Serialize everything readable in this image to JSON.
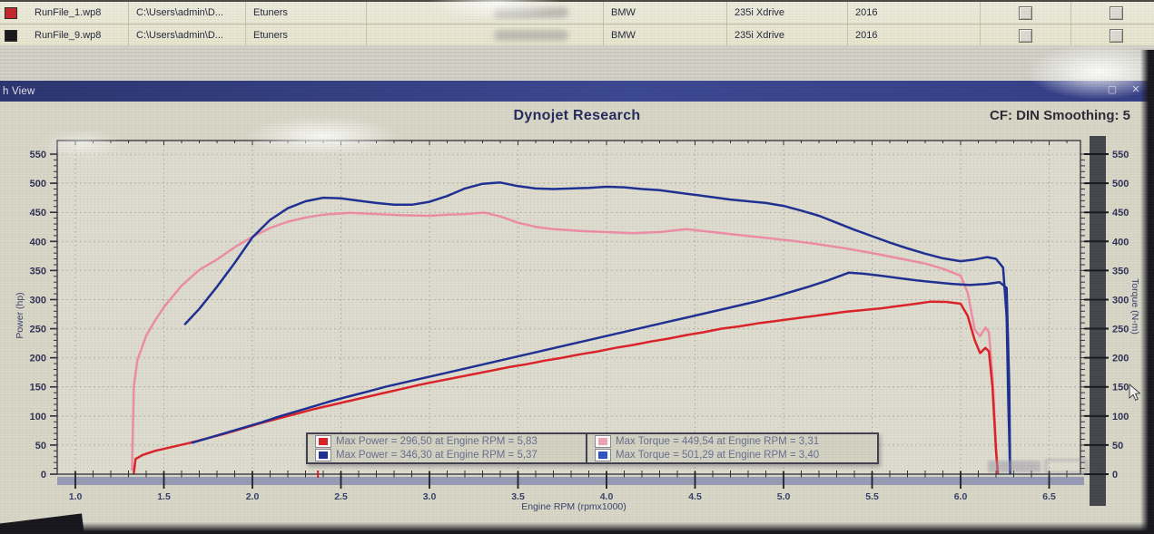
{
  "window": {
    "title": "h View",
    "maximize_glyph": "▢",
    "close_glyph": "✕"
  },
  "header": {
    "title": "Dynojet Research",
    "smoothing": "CF: DIN Smoothing: 5"
  },
  "table": {
    "rows": [
      {
        "icon_color": "#c4262b",
        "file": "RunFile_1.wp8",
        "path": "C:\\Users\\admin\\D...",
        "tuner": "Etuners",
        "make": "BMW",
        "model": "235i Xdrive",
        "year": "2016"
      },
      {
        "icon_color": "#17171a",
        "file": "RunFile_9.wp8",
        "path": "C:\\Users\\admin\\D...",
        "tuner": "Etuners",
        "make": "BMW",
        "model": "235i Xdrive",
        "year": "2016"
      }
    ]
  },
  "chart_data": {
    "type": "line",
    "title": "Dynojet Research",
    "xlabel": "Engine RPM (rpmx1000)",
    "ylabel_left": "Power (hp)",
    "ylabel_right": "Torque (N-m)",
    "xlim": [
      0.9,
      6.68
    ],
    "ylim": [
      0,
      573
    ],
    "x_ticks": [
      1.0,
      1.5,
      2.0,
      2.5,
      3.0,
      3.5,
      4.0,
      4.5,
      5.0,
      5.5,
      6.0,
      6.5
    ],
    "y_ticks": [
      0,
      50,
      100,
      150,
      200,
      250,
      300,
      350,
      400,
      450,
      500,
      550
    ],
    "x_minor_step": 0.1,
    "y_minor_step": 10,
    "grid": true,
    "legend_position": "bottom-center",
    "cursor_marker_rpm": 2.37,
    "colors": {
      "power_stock": "#dc2127",
      "power_tuned": "#1d2f93",
      "torque_stock": "#ee8da6",
      "torque_tuned": "#1d2f93"
    },
    "series": [
      {
        "name": "power_stock",
        "unit": "hp",
        "color": "#dc2127",
        "points": [
          [
            1.33,
            2
          ],
          [
            1.34,
            26
          ],
          [
            1.38,
            33
          ],
          [
            1.45,
            40
          ],
          [
            1.55,
            47
          ],
          [
            1.65,
            54
          ],
          [
            1.75,
            62
          ],
          [
            1.85,
            70
          ],
          [
            1.95,
            79
          ],
          [
            2.05,
            88
          ],
          [
            2.15,
            96
          ],
          [
            2.25,
            104
          ],
          [
            2.35,
            112
          ],
          [
            2.45,
            119
          ],
          [
            2.55,
            126
          ],
          [
            2.65,
            133
          ],
          [
            2.75,
            140
          ],
          [
            2.85,
            147
          ],
          [
            2.95,
            154
          ],
          [
            3.05,
            160
          ],
          [
            3.15,
            166
          ],
          [
            3.25,
            172
          ],
          [
            3.35,
            178
          ],
          [
            3.45,
            184
          ],
          [
            3.55,
            189
          ],
          [
            3.65,
            195
          ],
          [
            3.75,
            200
          ],
          [
            3.85,
            206
          ],
          [
            3.95,
            211
          ],
          [
            4.05,
            217
          ],
          [
            4.15,
            222
          ],
          [
            4.25,
            228
          ],
          [
            4.35,
            233
          ],
          [
            4.45,
            239
          ],
          [
            4.55,
            244
          ],
          [
            4.65,
            250
          ],
          [
            4.75,
            254
          ],
          [
            4.85,
            259
          ],
          [
            4.95,
            263
          ],
          [
            5.05,
            267
          ],
          [
            5.15,
            271
          ],
          [
            5.25,
            275
          ],
          [
            5.35,
            279
          ],
          [
            5.45,
            282
          ],
          [
            5.55,
            285
          ],
          [
            5.65,
            289
          ],
          [
            5.75,
            293
          ],
          [
            5.83,
            296.5
          ],
          [
            5.92,
            296
          ],
          [
            6.0,
            293
          ],
          [
            6.04,
            272
          ],
          [
            6.08,
            230
          ],
          [
            6.11,
            208
          ],
          [
            6.14,
            217
          ],
          [
            6.16,
            211
          ],
          [
            6.18,
            150
          ],
          [
            6.2,
            40
          ],
          [
            6.21,
            0
          ]
        ]
      },
      {
        "name": "power_tuned",
        "unit": "hp",
        "color": "#1d2f93",
        "points": [
          [
            1.66,
            54
          ],
          [
            1.75,
            62
          ],
          [
            1.85,
            71
          ],
          [
            1.95,
            80
          ],
          [
            2.05,
            89
          ],
          [
            2.15,
            99
          ],
          [
            2.25,
            108
          ],
          [
            2.35,
            117
          ],
          [
            2.45,
            126
          ],
          [
            2.55,
            134
          ],
          [
            2.65,
            142
          ],
          [
            2.75,
            150
          ],
          [
            2.85,
            157
          ],
          [
            2.95,
            164
          ],
          [
            3.05,
            171
          ],
          [
            3.15,
            178
          ],
          [
            3.25,
            185
          ],
          [
            3.35,
            192
          ],
          [
            3.45,
            199
          ],
          [
            3.55,
            206
          ],
          [
            3.65,
            213
          ],
          [
            3.75,
            220
          ],
          [
            3.85,
            227
          ],
          [
            3.95,
            234
          ],
          [
            4.05,
            241
          ],
          [
            4.15,
            248
          ],
          [
            4.25,
            255
          ],
          [
            4.35,
            262
          ],
          [
            4.45,
            269
          ],
          [
            4.55,
            276
          ],
          [
            4.65,
            283
          ],
          [
            4.75,
            290
          ],
          [
            4.85,
            297
          ],
          [
            4.95,
            305
          ],
          [
            5.05,
            314
          ],
          [
            5.15,
            323
          ],
          [
            5.25,
            333
          ],
          [
            5.37,
            346.3
          ],
          [
            5.45,
            344.5
          ],
          [
            5.55,
            341
          ],
          [
            5.65,
            337
          ],
          [
            5.75,
            333
          ],
          [
            5.85,
            330
          ],
          [
            5.95,
            327
          ],
          [
            6.05,
            325
          ],
          [
            6.15,
            327
          ],
          [
            6.22,
            330
          ],
          [
            6.26,
            320
          ],
          [
            6.275,
            150
          ],
          [
            6.28,
            0
          ]
        ]
      },
      {
        "name": "torque_stock",
        "unit": "N-m",
        "color": "#ee8da6",
        "points": [
          [
            1.32,
            8
          ],
          [
            1.33,
            150
          ],
          [
            1.35,
            196
          ],
          [
            1.4,
            238
          ],
          [
            1.45,
            264
          ],
          [
            1.5,
            287
          ],
          [
            1.6,
            324
          ],
          [
            1.7,
            351
          ],
          [
            1.8,
            369
          ],
          [
            1.9,
            390
          ],
          [
            2.0,
            408
          ],
          [
            2.1,
            423
          ],
          [
            2.2,
            434
          ],
          [
            2.3,
            441
          ],
          [
            2.4,
            446
          ],
          [
            2.55,
            449
          ],
          [
            2.7,
            447
          ],
          [
            2.85,
            445
          ],
          [
            3.0,
            444
          ],
          [
            3.1,
            446
          ],
          [
            3.2,
            447
          ],
          [
            3.31,
            449.5
          ],
          [
            3.4,
            443
          ],
          [
            3.5,
            432
          ],
          [
            3.6,
            425
          ],
          [
            3.7,
            421
          ],
          [
            3.85,
            418
          ],
          [
            4.0,
            416
          ],
          [
            4.15,
            414
          ],
          [
            4.3,
            416
          ],
          [
            4.45,
            421
          ],
          [
            4.6,
            416
          ],
          [
            4.75,
            411
          ],
          [
            4.9,
            406
          ],
          [
            5.05,
            401
          ],
          [
            5.2,
            395
          ],
          [
            5.35,
            388
          ],
          [
            5.5,
            380
          ],
          [
            5.65,
            371
          ],
          [
            5.8,
            362
          ],
          [
            5.9,
            353
          ],
          [
            6.0,
            341
          ],
          [
            6.04,
            312
          ],
          [
            6.08,
            248
          ],
          [
            6.11,
            237
          ],
          [
            6.14,
            252
          ],
          [
            6.16,
            244
          ],
          [
            6.18,
            170
          ],
          [
            6.2,
            50
          ],
          [
            6.21,
            0
          ]
        ]
      },
      {
        "name": "torque_tuned",
        "unit": "N-m",
        "color": "#1d2f93",
        "points": [
          [
            1.62,
            258
          ],
          [
            1.7,
            284
          ],
          [
            1.8,
            322
          ],
          [
            1.9,
            363
          ],
          [
            2.0,
            407
          ],
          [
            2.1,
            437
          ],
          [
            2.2,
            457
          ],
          [
            2.3,
            469
          ],
          [
            2.4,
            475
          ],
          [
            2.5,
            474
          ],
          [
            2.6,
            470
          ],
          [
            2.7,
            466
          ],
          [
            2.8,
            463
          ],
          [
            2.9,
            463
          ],
          [
            3.0,
            468
          ],
          [
            3.1,
            478
          ],
          [
            3.2,
            491
          ],
          [
            3.3,
            499
          ],
          [
            3.4,
            501.3
          ],
          [
            3.5,
            495
          ],
          [
            3.6,
            491
          ],
          [
            3.7,
            490
          ],
          [
            3.8,
            491
          ],
          [
            3.9,
            492
          ],
          [
            4.0,
            494
          ],
          [
            4.1,
            493
          ],
          [
            4.2,
            490
          ],
          [
            4.3,
            488
          ],
          [
            4.4,
            484
          ],
          [
            4.5,
            480
          ],
          [
            4.6,
            476
          ],
          [
            4.7,
            472
          ],
          [
            4.8,
            469
          ],
          [
            4.9,
            466
          ],
          [
            5.0,
            461
          ],
          [
            5.1,
            453
          ],
          [
            5.2,
            444
          ],
          [
            5.3,
            432
          ],
          [
            5.4,
            420
          ],
          [
            5.5,
            409
          ],
          [
            5.6,
            398
          ],
          [
            5.7,
            388
          ],
          [
            5.8,
            379
          ],
          [
            5.9,
            371
          ],
          [
            6.0,
            366
          ],
          [
            6.08,
            369
          ],
          [
            6.15,
            373
          ],
          [
            6.2,
            370
          ],
          [
            6.24,
            355
          ],
          [
            6.26,
            270
          ],
          [
            6.27,
            120
          ],
          [
            6.28,
            0
          ]
        ]
      }
    ],
    "legend": [
      {
        "swatch": "#dc2127",
        "label": "Max Power = 296,50 at Engine RPM = 5,83"
      },
      {
        "swatch": "#f0a3b6",
        "label": "Max Torque = 449,54 at Engine RPM = 3,31"
      },
      {
        "swatch": "#1d2f93",
        "label": "Max Power = 346,30 at Engine RPM = 5,37"
      },
      {
        "swatch": "#2f55c4",
        "label": "Max Torque = 501,29 at Engine RPM = 3,40"
      }
    ]
  }
}
